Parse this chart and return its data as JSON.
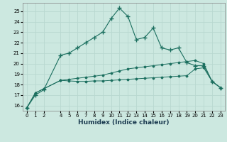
{
  "xlabel": "Humidex (Indice chaleur)",
  "background_color": "#cce8e0",
  "grid_color": "#b8d8d0",
  "line_color": "#1a6e5e",
  "xlim": [
    -0.5,
    23.5
  ],
  "ylim": [
    15.5,
    25.8
  ],
  "yticks": [
    16,
    17,
    18,
    19,
    20,
    21,
    22,
    23,
    24,
    25
  ],
  "xticks": [
    0,
    1,
    2,
    4,
    5,
    6,
    7,
    8,
    9,
    10,
    11,
    12,
    13,
    14,
    15,
    16,
    17,
    18,
    19,
    20,
    21,
    22,
    23
  ],
  "series1_x": [
    0,
    1,
    2,
    4,
    5,
    6,
    7,
    8,
    9,
    10,
    11,
    12,
    13,
    14,
    15,
    16,
    17,
    18,
    19,
    20,
    21,
    22,
    23
  ],
  "series1_y": [
    15.8,
    17.0,
    17.5,
    20.8,
    21.0,
    21.5,
    22.0,
    22.5,
    23.0,
    24.3,
    25.3,
    24.5,
    22.3,
    22.5,
    23.4,
    21.5,
    21.3,
    21.5,
    20.1,
    19.8,
    19.8,
    18.3,
    17.7
  ],
  "series2_x": [
    0,
    1,
    2,
    4,
    5,
    6,
    7,
    8,
    9,
    10,
    11,
    12,
    13,
    14,
    15,
    16,
    17,
    18,
    19,
    20,
    21,
    22,
    23
  ],
  "series2_y": [
    15.8,
    17.2,
    17.6,
    18.4,
    18.35,
    18.3,
    18.3,
    18.35,
    18.35,
    18.4,
    18.45,
    18.5,
    18.55,
    18.6,
    18.65,
    18.7,
    18.75,
    18.8,
    18.85,
    19.5,
    19.6,
    18.3,
    17.7
  ],
  "series3_x": [
    0,
    1,
    2,
    4,
    5,
    6,
    7,
    8,
    9,
    10,
    11,
    12,
    13,
    14,
    15,
    16,
    17,
    18,
    19,
    20,
    21,
    22,
    23
  ],
  "series3_y": [
    15.8,
    17.2,
    17.6,
    18.4,
    18.5,
    18.6,
    18.7,
    18.8,
    18.9,
    19.1,
    19.3,
    19.5,
    19.6,
    19.7,
    19.8,
    19.9,
    20.0,
    20.1,
    20.2,
    20.3,
    20.0,
    18.3,
    17.7
  ]
}
